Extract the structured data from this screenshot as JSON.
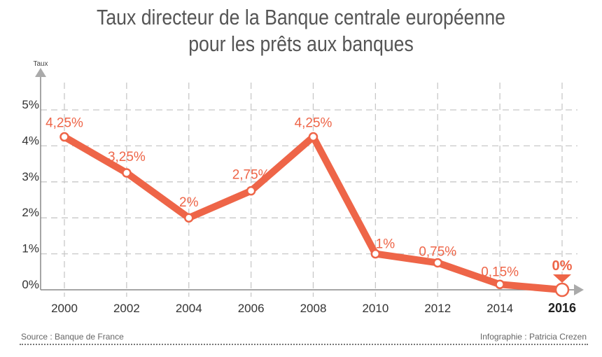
{
  "title_line1": "Taux directeur de la Banque centrale européenne",
  "title_line2": "pour les prêts aux banques",
  "source": "Source : Banque de France",
  "credit": "Infographie : Patricia Crezen",
  "colors": {
    "line": "#ee6548",
    "grid": "#c8c8c8",
    "axis": "#888888",
    "text": "#333333"
  },
  "chart_data": {
    "type": "line",
    "title": "Taux directeur de la Banque centrale européenne pour les prêts aux banques",
    "ylabel": "Taux",
    "xlabel": "",
    "x": [
      2000,
      2002,
      2004,
      2006,
      2008,
      2010,
      2012,
      2014,
      2016
    ],
    "x_tick_labels": [
      "2000",
      "2002",
      "2004",
      "2006",
      "2008",
      "2010",
      "2012",
      "2014",
      "2016"
    ],
    "y_tick_labels": [
      "0%",
      "1%",
      "2%",
      "3%",
      "4%",
      "5%"
    ],
    "y_ticks": [
      0,
      1,
      2,
      3,
      4,
      5
    ],
    "ylim": [
      0,
      5.8
    ],
    "grid": true,
    "values": [
      4.25,
      3.25,
      2,
      2.75,
      4.25,
      1,
      0.75,
      0.15,
      0
    ],
    "data_labels": [
      "4,25%",
      "3,25%",
      "2%",
      "2,75%",
      "4,25%",
      "1%",
      "0,75%",
      "0,15%",
      "0%"
    ],
    "highlight_last": true
  }
}
